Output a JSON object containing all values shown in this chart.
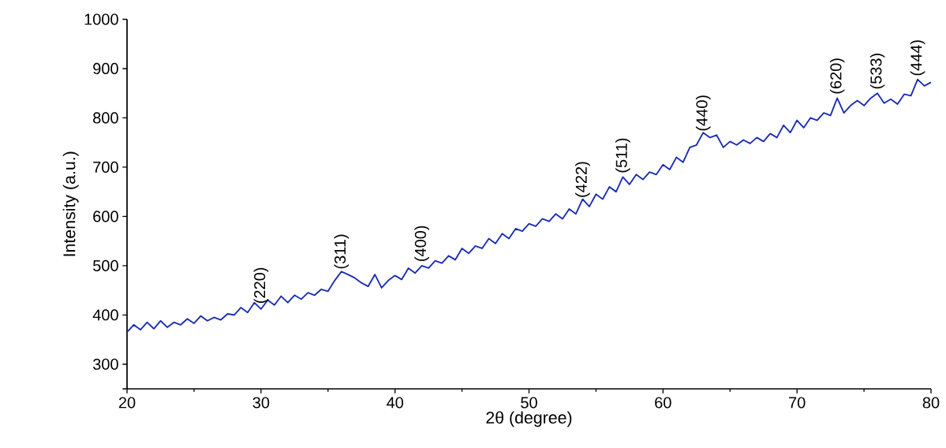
{
  "chart_data": {
    "type": "line",
    "xlabel": "2θ (degree)",
    "ylabel": "Intensity (a.u.)",
    "xlim": [
      20,
      80
    ],
    "ylim": [
      250,
      1000
    ],
    "xticks": [
      20,
      30,
      40,
      50,
      60,
      70,
      80
    ],
    "yticks": [
      {
        "value": 250,
        "label": null
      },
      300,
      400,
      500,
      600,
      700,
      800,
      900,
      1000
    ],
    "series": [
      {
        "color": "#1a2db4",
        "x": [
          20,
          20.5,
          21,
          21.5,
          22,
          22.5,
          23,
          23.5,
          24,
          24.5,
          25,
          25.5,
          26,
          26.5,
          27,
          27.5,
          28,
          28.5,
          29,
          29.5,
          30,
          30.5,
          31,
          31.5,
          32,
          32.5,
          33,
          33.5,
          34,
          34.5,
          35,
          35.5,
          36,
          36.5,
          37,
          37.5,
          38,
          38.5,
          39,
          39.5,
          40,
          40.5,
          41,
          41.5,
          42,
          42.5,
          43,
          43.5,
          44,
          44.5,
          45,
          45.5,
          46,
          46.5,
          47,
          47.5,
          48,
          48.5,
          49,
          49.5,
          50,
          50.5,
          51,
          51.5,
          52,
          52.5,
          53,
          53.5,
          54,
          54.5,
          55,
          55.5,
          56,
          56.5,
          57,
          57.5,
          58,
          58.5,
          59,
          59.5,
          60,
          60.5,
          61,
          61.5,
          62,
          62.5,
          63,
          63.5,
          64,
          64.5,
          65,
          65.5,
          66,
          66.5,
          67,
          67.5,
          68,
          68.5,
          69,
          69.5,
          70,
          70.5,
          71,
          71.5,
          72,
          72.5,
          73,
          73.5,
          74,
          74.5,
          75,
          75.5,
          76,
          76.5,
          77,
          77.5,
          78,
          78.5,
          79,
          79.5,
          80
        ],
        "values": [
          365,
          380,
          370,
          385,
          372,
          388,
          375,
          385,
          380,
          392,
          383,
          398,
          388,
          395,
          390,
          402,
          400,
          415,
          405,
          425,
          412,
          430,
          420,
          438,
          425,
          440,
          432,
          445,
          440,
          452,
          448,
          470,
          488,
          482,
          475,
          465,
          458,
          482,
          455,
          470,
          480,
          472,
          495,
          485,
          500,
          495,
          510,
          505,
          520,
          512,
          535,
          525,
          540,
          535,
          555,
          545,
          565,
          555,
          575,
          570,
          585,
          580,
          595,
          590,
          605,
          595,
          615,
          605,
          635,
          620,
          645,
          635,
          660,
          650,
          680,
          665,
          685,
          675,
          690,
          685,
          705,
          695,
          720,
          710,
          740,
          745,
          770,
          760,
          765,
          740,
          752,
          745,
          755,
          748,
          760,
          752,
          768,
          760,
          785,
          770,
          795,
          780,
          800,
          795,
          810,
          805,
          840,
          810,
          825,
          835,
          825,
          840,
          850,
          830,
          838,
          828,
          848,
          845,
          878,
          865,
          872
        ]
      }
    ],
    "annotations": [
      {
        "text": "(220)",
        "x": 30,
        "y": 420
      },
      {
        "text": "(311)",
        "x": 36,
        "y": 490
      },
      {
        "text": "(400)",
        "x": 42,
        "y": 505
      },
      {
        "text": "(422)",
        "x": 54,
        "y": 635
      },
      {
        "text": "(511)",
        "x": 57,
        "y": 685
      },
      {
        "text": "(440)",
        "x": 63,
        "y": 770
      },
      {
        "text": "(620)",
        "x": 73,
        "y": 845
      },
      {
        "text": "(533)",
        "x": 76,
        "y": 855
      },
      {
        "text": "(444)",
        "x": 79,
        "y": 882
      }
    ]
  }
}
